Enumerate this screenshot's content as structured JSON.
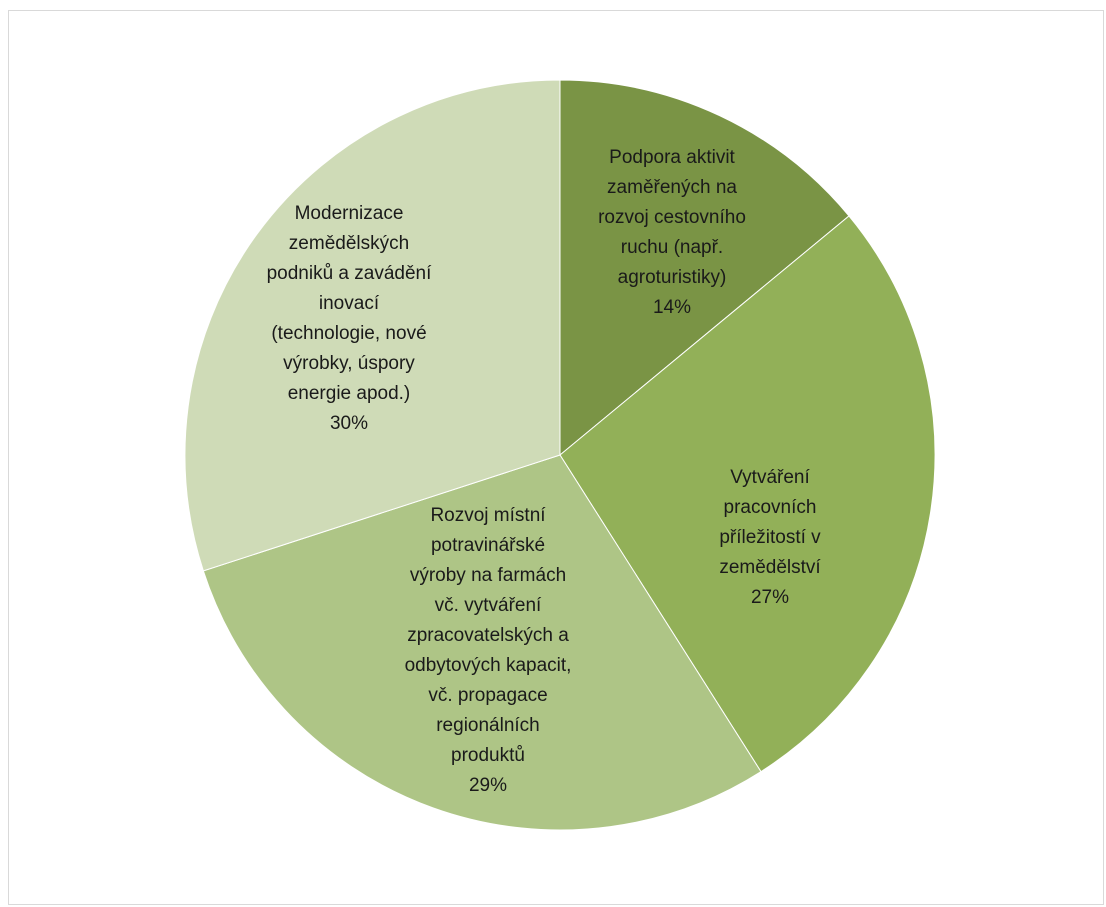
{
  "chart_data": {
    "type": "pie",
    "title": "",
    "legend": "none",
    "start_angle_deg": 0,
    "direction": "clockwise",
    "slices": [
      {
        "label_lines": [
          "Podpora aktivit",
          "zaměřených na",
          "rozvoj cestovního",
          "ruchu (např.",
          "agroturistiky)"
        ],
        "value": 14,
        "value_label": "14%",
        "color": "#7a9445"
      },
      {
        "label_lines": [
          "Vytváření",
          "pracovních",
          "příležitostí v",
          "zemědělství"
        ],
        "value": 27,
        "value_label": "27%",
        "color": "#92b058"
      },
      {
        "label_lines": [
          "Rozvoj místní",
          "potravinářské",
          "výroby na farmách",
          "vč. vytváření",
          "zpracovatelských a",
          "odbytových kapacit,",
          "vč. propagace",
          "regionálních",
          "produktů"
        ],
        "value": 29,
        "value_label": "29%",
        "color": "#aec586"
      },
      {
        "label_lines": [
          "Modernizace",
          "zemědělských",
          "podniků a zavádění",
          "inovací",
          "(technologie, nové",
          "výrobky, úspory",
          "energie apod.)"
        ],
        "value": 30,
        "value_label": "30%",
        "color": "#cfdbb7"
      }
    ]
  }
}
